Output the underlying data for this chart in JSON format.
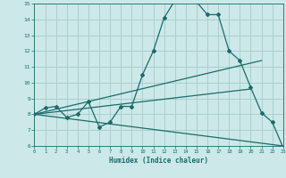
{
  "xlabel": "Humidex (Indice chaleur)",
  "bg_color": "#cce8e8",
  "grid_color": "#aacfcf",
  "line_color": "#1a6b6b",
  "x_min": 0,
  "x_max": 23,
  "y_min": 6,
  "y_max": 15,
  "line1_x": [
    0,
    1,
    2,
    3,
    4,
    5,
    6,
    7,
    8,
    9,
    10,
    11,
    12,
    13,
    14,
    15,
    16,
    17,
    18,
    19,
    20,
    21,
    22,
    23
  ],
  "line1_y": [
    8.0,
    8.4,
    8.5,
    7.8,
    8.0,
    8.8,
    7.2,
    7.5,
    8.5,
    8.5,
    10.5,
    12.0,
    14.1,
    15.2,
    15.2,
    15.1,
    14.3,
    14.3,
    12.0,
    11.4,
    9.7,
    8.1,
    7.5,
    5.9
  ],
  "line2_x": [
    0,
    21
  ],
  "line2_y": [
    8.0,
    11.4
  ],
  "line3_x": [
    0,
    20
  ],
  "line3_y": [
    8.0,
    9.6
  ],
  "line4_x": [
    0,
    23
  ],
  "line4_y": [
    8.0,
    6.0
  ]
}
